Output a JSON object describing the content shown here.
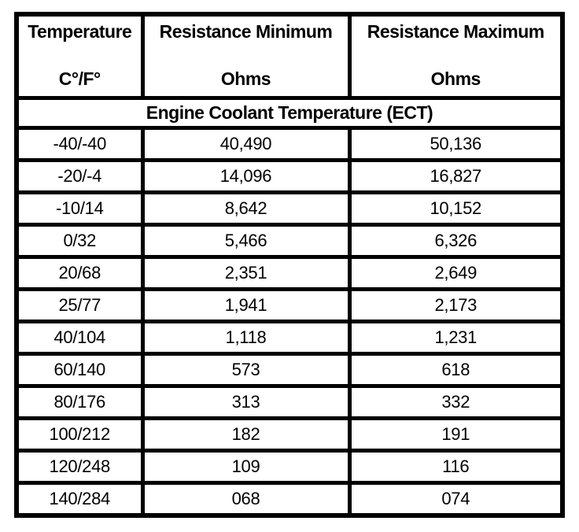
{
  "page": {
    "background_color": "#ffffff",
    "border_color": "#000000",
    "text_color": "#000000"
  },
  "table": {
    "columns": [
      {
        "title": "Temperature",
        "subtitle": "C°/F°"
      },
      {
        "title": "Resistance Minimum",
        "subtitle": "Ohms"
      },
      {
        "title": "Resistance Maximum",
        "subtitle": "Ohms"
      }
    ],
    "section_header": "Engine Coolant Temperature (ECT)",
    "rows": [
      {
        "temp": "-40/-40",
        "min": "40,490",
        "max": "50,136"
      },
      {
        "temp": "-20/-4",
        "min": "14,096",
        "max": "16,827"
      },
      {
        "temp": "-10/14",
        "min": "8,642",
        "max": "10,152"
      },
      {
        "temp": "0/32",
        "min": "5,466",
        "max": "6,326"
      },
      {
        "temp": "20/68",
        "min": "2,351",
        "max": "2,649"
      },
      {
        "temp": "25/77",
        "min": "1,941",
        "max": "2,173"
      },
      {
        "temp": "40/104",
        "min": "1,118",
        "max": "1,231"
      },
      {
        "temp": "60/140",
        "min": "573",
        "max": "618"
      },
      {
        "temp": "80/176",
        "min": "313",
        "max": "332"
      },
      {
        "temp": "100/212",
        "min": "182",
        "max": "191"
      },
      {
        "temp": "120/248",
        "min": "109",
        "max": "116"
      },
      {
        "temp": "140/284",
        "min": "068",
        "max": "074"
      }
    ]
  }
}
